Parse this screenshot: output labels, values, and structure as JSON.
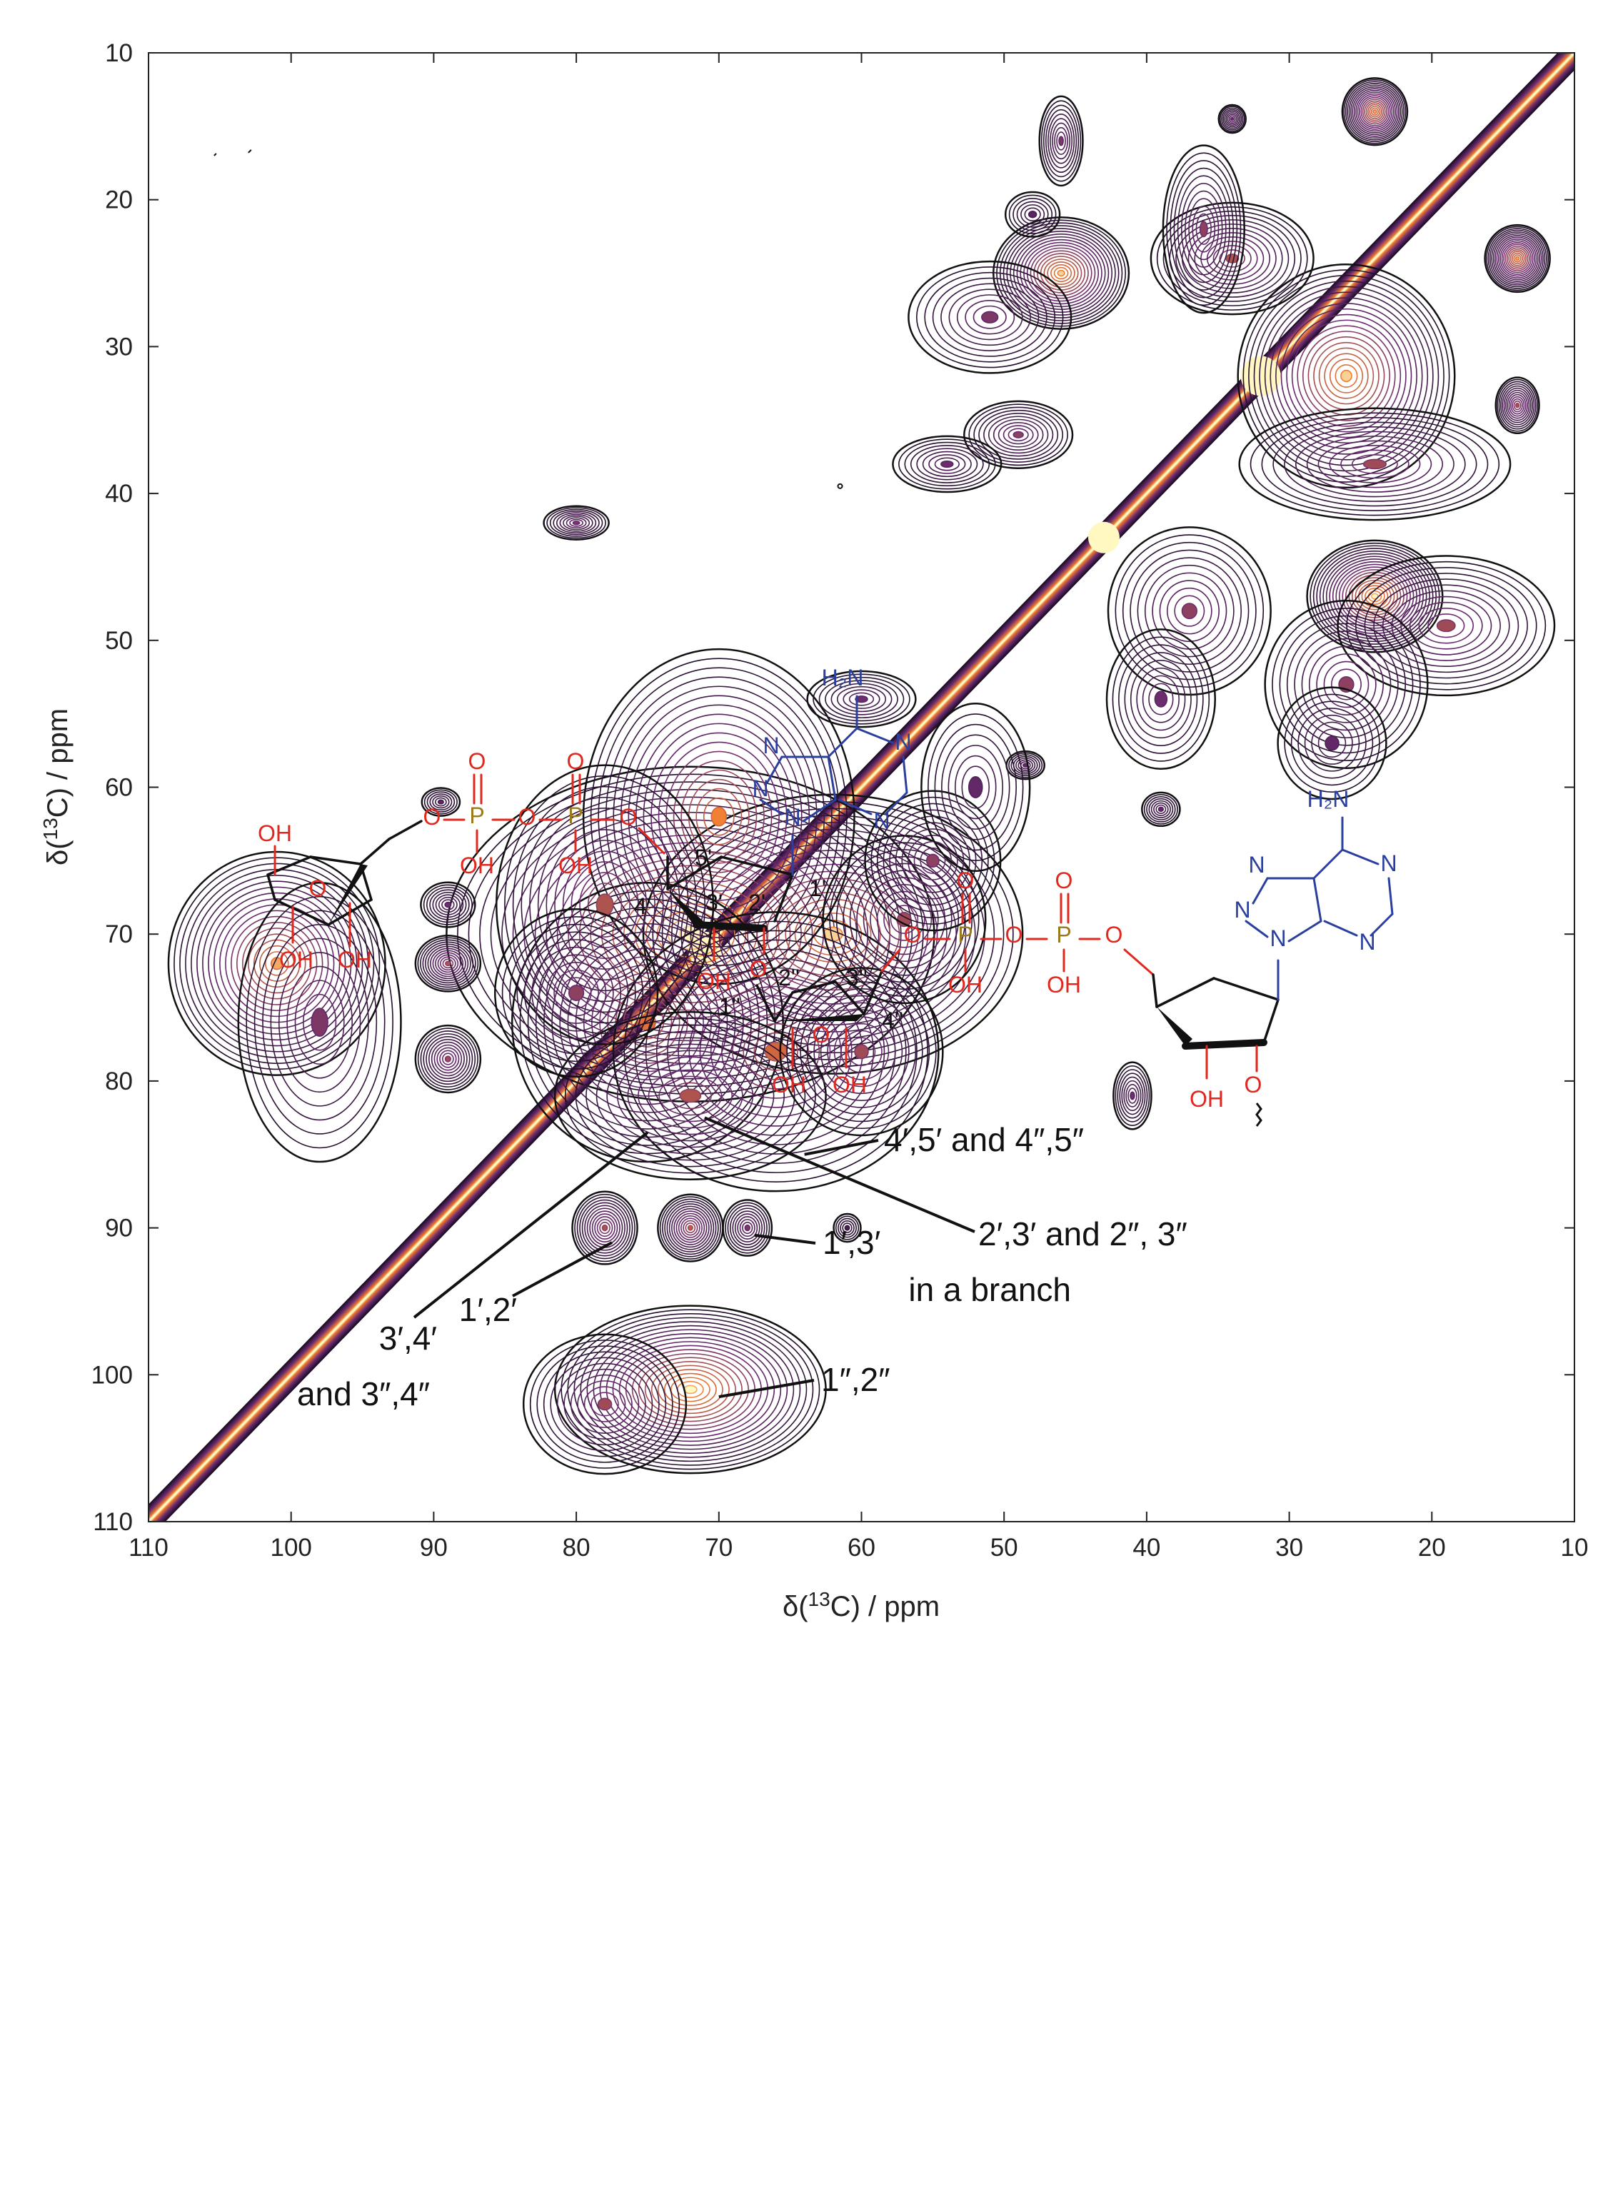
{
  "colors": {
    "diagonal_core": "#fff8c0",
    "contour_low": "#1b0b24",
    "contour_mid": "#6a2c70",
    "contour_high": "#f07a2f",
    "phosphate": "#e0281e",
    "phosphorus": "#9a7a1a",
    "adenine": "#2a3f9e",
    "bond": "#111111"
  },
  "chart_data": {
    "type": "heatmap",
    "subtype": "2D 13C-13C correlation contour spectrum",
    "xlabel": "δ(13C) / ppm",
    "ylabel": "δ(13C) / ppm",
    "xlim": [
      110,
      10
    ],
    "ylim": [
      110,
      10
    ],
    "x_ticks": [
      "110",
      "100",
      "90",
      "80",
      "70",
      "60",
      "50",
      "40",
      "30",
      "20",
      "10"
    ],
    "y_ticks": [
      "10",
      "20",
      "30",
      "40",
      "50",
      "60",
      "70",
      "80",
      "90",
      "100",
      "110"
    ],
    "grid": false,
    "diagonal": {
      "from": [
        110,
        110
      ],
      "to": [
        10,
        10
      ]
    },
    "peaks": [
      {
        "x": 72,
        "y": 70,
        "sx": 9,
        "sy": 6,
        "amp": 1.0
      },
      {
        "x": 62,
        "y": 70,
        "sx": 7,
        "sy": 5,
        "amp": 0.9
      },
      {
        "x": 70,
        "y": 62,
        "sx": 5,
        "sy": 6,
        "amp": 0.8
      },
      {
        "x": 75,
        "y": 76,
        "sx": 5,
        "sy": 5,
        "amp": 0.75
      },
      {
        "x": 66,
        "y": 78,
        "sx": 6,
        "sy": 5,
        "amp": 0.7
      },
      {
        "x": 72,
        "y": 81,
        "sx": 5,
        "sy": 3,
        "amp": 0.6
      },
      {
        "x": 78,
        "y": 68,
        "sx": 4,
        "sy": 5,
        "amp": 0.6
      },
      {
        "x": 80,
        "y": 74,
        "sx": 3,
        "sy": 3,
        "amp": 0.5
      },
      {
        "x": 60,
        "y": 78,
        "sx": 3,
        "sy": 3,
        "amp": 0.55
      },
      {
        "x": 57,
        "y": 69,
        "sx": 3,
        "sy": 3,
        "amp": 0.55
      },
      {
        "x": 101,
        "y": 72,
        "sx": 4,
        "sy": 4,
        "amp": 0.85
      },
      {
        "x": 98,
        "y": 76,
        "sx": 3,
        "sy": 5,
        "amp": 0.45
      },
      {
        "x": 89,
        "y": 72,
        "sx": 1.2,
        "sy": 1.0,
        "amp": 0.6
      },
      {
        "x": 89,
        "y": 68,
        "sx": 1.0,
        "sy": 0.8,
        "amp": 0.4
      },
      {
        "x": 89,
        "y": 78.5,
        "sx": 1.2,
        "sy": 1.2,
        "amp": 0.55
      },
      {
        "x": 89.5,
        "y": 61,
        "sx": 0.7,
        "sy": 0.5,
        "amp": 0.3
      },
      {
        "x": 72,
        "y": 101,
        "sx": 5,
        "sy": 3,
        "amp": 0.95
      },
      {
        "x": 78,
        "y": 102,
        "sx": 3,
        "sy": 2.5,
        "amp": 0.55
      },
      {
        "x": 78,
        "y": 90,
        "sx": 1.2,
        "sy": 1.3,
        "amp": 0.6
      },
      {
        "x": 72,
        "y": 90,
        "sx": 1.2,
        "sy": 1.2,
        "amp": 0.65
      },
      {
        "x": 68,
        "y": 90,
        "sx": 0.9,
        "sy": 1.0,
        "amp": 0.45
      },
      {
        "x": 61,
        "y": 90,
        "sx": 0.5,
        "sy": 0.5,
        "amp": 0.2
      },
      {
        "x": 46,
        "y": 25,
        "sx": 2.5,
        "sy": 2,
        "amp": 0.9
      },
      {
        "x": 51,
        "y": 28,
        "sx": 3,
        "sy": 2,
        "amp": 0.45
      },
      {
        "x": 46,
        "y": 16,
        "sx": 0.8,
        "sy": 1.6,
        "amp": 0.45
      },
      {
        "x": 48,
        "y": 21,
        "sx": 1.0,
        "sy": 0.8,
        "amp": 0.3
      },
      {
        "x": 24,
        "y": 14,
        "sx": 1.2,
        "sy": 1.2,
        "amp": 0.85
      },
      {
        "x": 14,
        "y": 24,
        "sx": 1.2,
        "sy": 1.2,
        "amp": 0.85
      },
      {
        "x": 14,
        "y": 34,
        "sx": 0.8,
        "sy": 1.0,
        "amp": 0.6
      },
      {
        "x": 34,
        "y": 14.5,
        "sx": 0.5,
        "sy": 0.5,
        "amp": 0.4
      },
      {
        "x": 26,
        "y": 32,
        "sx": 4,
        "sy": 4,
        "amp": 0.9
      },
      {
        "x": 34,
        "y": 24,
        "sx": 3,
        "sy": 2,
        "amp": 0.6
      },
      {
        "x": 24,
        "y": 38,
        "sx": 5,
        "sy": 2,
        "amp": 0.55
      },
      {
        "x": 36,
        "y": 22,
        "sx": 1.5,
        "sy": 3,
        "amp": 0.5
      },
      {
        "x": 24,
        "y": 47,
        "sx": 2.5,
        "sy": 2,
        "amp": 0.95
      },
      {
        "x": 19,
        "y": 49,
        "sx": 4,
        "sy": 2.5,
        "amp": 0.55
      },
      {
        "x": 26,
        "y": 53,
        "sx": 3,
        "sy": 3,
        "amp": 0.5
      },
      {
        "x": 27,
        "y": 57,
        "sx": 2,
        "sy": 2,
        "amp": 0.35
      },
      {
        "x": 37,
        "y": 48,
        "sx": 3,
        "sy": 3,
        "amp": 0.5
      },
      {
        "x": 39,
        "y": 54,
        "sx": 2,
        "sy": 2.5,
        "amp": 0.4
      },
      {
        "x": 49,
        "y": 36,
        "sx": 2,
        "sy": 1.2,
        "amp": 0.5
      },
      {
        "x": 54,
        "y": 38,
        "sx": 2,
        "sy": 1.0,
        "amp": 0.4
      },
      {
        "x": 60,
        "y": 54,
        "sx": 2,
        "sy": 1.0,
        "amp": 0.4
      },
      {
        "x": 80,
        "y": 42,
        "sx": 1.2,
        "sy": 0.6,
        "amp": 0.45
      },
      {
        "x": 48.5,
        "y": 58.5,
        "sx": 0.7,
        "sy": 0.5,
        "amp": 0.35
      },
      {
        "x": 39,
        "y": 61.5,
        "sx": 0.7,
        "sy": 0.6,
        "amp": 0.35
      },
      {
        "x": 41,
        "y": 81,
        "sx": 0.7,
        "sy": 1.2,
        "amp": 0.4
      },
      {
        "x": 55,
        "y": 65,
        "sx": 2.5,
        "sy": 2.5,
        "amp": 0.5
      },
      {
        "x": 52,
        "y": 60,
        "sx": 2,
        "sy": 3,
        "amp": 0.35
      }
    ],
    "annotations": [
      {
        "label": "4′,5′ and 4″,5″",
        "x": 64,
        "y": 85
      },
      {
        "label": "2′,3′ and 2″, 3″",
        "label2": "in a branch",
        "x": 71,
        "y": 82.5
      },
      {
        "label": "1′,3′",
        "x": 67.5,
        "y": 90.5
      },
      {
        "label": "1′,2′",
        "x": 77.5,
        "y": 91
      },
      {
        "label": "3′,4′",
        "label2": "and 3″,4″",
        "x": 75,
        "y": 83.5
      },
      {
        "label": "1″,2″",
        "x": 70,
        "y": 101.5
      }
    ]
  },
  "structure": {
    "phosphorus_label": "P",
    "oxygen_label": "O",
    "hydroxyl_label": "OH",
    "amine_label": "H₂N",
    "nitrogen_label": "N",
    "ring_oxygen": "O",
    "positions": [
      "5'",
      "4'",
      "3'",
      "2'",
      "1'",
      "1''",
      "2''",
      "3''",
      "4''"
    ]
  }
}
